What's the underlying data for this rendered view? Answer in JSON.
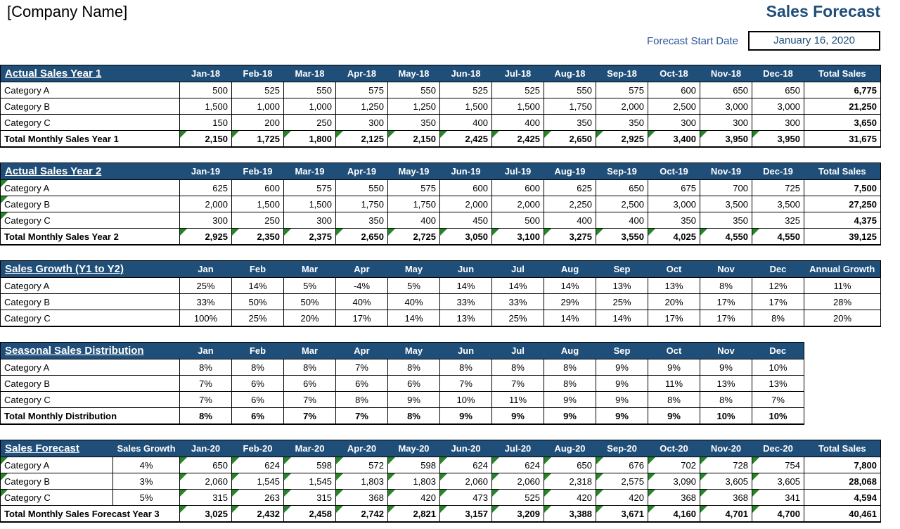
{
  "header": {
    "company_name": "[Company Name]",
    "title": "Sales Forecast",
    "forecast_start_label": "Forecast Start Date",
    "forecast_start_date": "January 16, 2020"
  },
  "colors": {
    "header_navy": "#1F4E79",
    "total_blue": "#DCE6F1",
    "cell_gray": "#D9D9D9",
    "marker_green": "#278427"
  },
  "tables": [
    {
      "title": "Actual Sales Year 1",
      "months": [
        "Jan-18",
        "Feb-18",
        "Mar-18",
        "Apr-18",
        "May-18",
        "Jun-18",
        "Jul-18",
        "Aug-18",
        "Sep-18",
        "Oct-18",
        "Nov-18",
        "Dec-18"
      ],
      "total_header": "Total Sales",
      "rows": [
        {
          "label": "Category A",
          "cells": [
            "500",
            "525",
            "550",
            "575",
            "550",
            "525",
            "525",
            "550",
            "575",
            "600",
            "650",
            "650"
          ],
          "total": "6,775"
        },
        {
          "label": "Category B",
          "cells": [
            "1,500",
            "1,000",
            "1,000",
            "1,250",
            "1,250",
            "1,500",
            "1,500",
            "1,750",
            "2,000",
            "2,500",
            "3,000",
            "3,000"
          ],
          "total": "21,250"
        },
        {
          "label": "Category C",
          "cells": [
            "150",
            "200",
            "250",
            "300",
            "350",
            "400",
            "400",
            "350",
            "350",
            "300",
            "300",
            "300"
          ],
          "total": "3,650"
        }
      ],
      "total_row": {
        "label": "Total Monthly Sales Year 1",
        "cells": [
          "2,150",
          "1,725",
          "1,800",
          "2,125",
          "2,150",
          "2,425",
          "2,425",
          "2,650",
          "2,925",
          "3,400",
          "3,950",
          "3,950"
        ],
        "total": "31,675"
      }
    },
    {
      "title": "Actual Sales Year 2",
      "months": [
        "Jan-19",
        "Feb-19",
        "Mar-19",
        "Apr-19",
        "May-19",
        "Jun-19",
        "Jul-19",
        "Aug-19",
        "Sep-19",
        "Oct-19",
        "Nov-19",
        "Dec-19"
      ],
      "total_header": "Total Sales",
      "rows": [
        {
          "label": "Category A",
          "cells": [
            "625",
            "600",
            "575",
            "550",
            "575",
            "600",
            "600",
            "625",
            "650",
            "675",
            "700",
            "725"
          ],
          "total": "7,500"
        },
        {
          "label": "Category B",
          "cells": [
            "2,000",
            "1,500",
            "1,500",
            "1,750",
            "1,750",
            "2,000",
            "2,000",
            "2,250",
            "2,500",
            "3,000",
            "3,500",
            "3,500"
          ],
          "total": "27,250"
        },
        {
          "label": "Category C",
          "cells": [
            "300",
            "250",
            "300",
            "350",
            "400",
            "450",
            "500",
            "400",
            "400",
            "350",
            "350",
            "325"
          ],
          "total": "4,375"
        }
      ],
      "total_row": {
        "label": "Total Monthly Sales Year 2",
        "cells": [
          "2,925",
          "2,350",
          "2,375",
          "2,650",
          "2,725",
          "3,050",
          "3,100",
          "3,275",
          "3,550",
          "4,025",
          "4,550",
          "4,550"
        ],
        "total": "39,125"
      }
    },
    {
      "title": "Sales Growth (Y1 to Y2)",
      "months": [
        "Jan",
        "Feb",
        "Mar",
        "Apr",
        "May",
        "Jun",
        "Jul",
        "Aug",
        "Sep",
        "Oct",
        "Nov",
        "Dec"
      ],
      "total_header": "Annual Growth",
      "rows": [
        {
          "label": "Category A",
          "cells": [
            "25%",
            "14%",
            "5%",
            "-4%",
            "5%",
            "14%",
            "14%",
            "14%",
            "13%",
            "13%",
            "8%",
            "12%"
          ],
          "total": "11%"
        },
        {
          "label": "Category B",
          "cells": [
            "33%",
            "50%",
            "50%",
            "40%",
            "40%",
            "33%",
            "33%",
            "29%",
            "25%",
            "20%",
            "17%",
            "17%"
          ],
          "total": "28%"
        },
        {
          "label": "Category C",
          "cells": [
            "100%",
            "25%",
            "20%",
            "17%",
            "14%",
            "13%",
            "25%",
            "14%",
            "14%",
            "17%",
            "17%",
            "8%"
          ],
          "total": "20%"
        }
      ],
      "total_row": null
    },
    {
      "title": "Seasonal Sales Distribution",
      "months": [
        "Jan",
        "Feb",
        "Mar",
        "Apr",
        "May",
        "Jun",
        "Jul",
        "Aug",
        "Sep",
        "Oct",
        "Nov",
        "Dec"
      ],
      "total_header": null,
      "rows": [
        {
          "label": "Category A",
          "cells": [
            "8%",
            "8%",
            "8%",
            "7%",
            "8%",
            "8%",
            "8%",
            "8%",
            "9%",
            "9%",
            "9%",
            "10%"
          ]
        },
        {
          "label": "Category B",
          "cells": [
            "7%",
            "6%",
            "6%",
            "6%",
            "6%",
            "7%",
            "7%",
            "8%",
            "9%",
            "11%",
            "13%",
            "13%"
          ]
        },
        {
          "label": "Category C",
          "cells": [
            "7%",
            "6%",
            "7%",
            "8%",
            "9%",
            "10%",
            "11%",
            "9%",
            "9%",
            "8%",
            "8%",
            "7%"
          ]
        }
      ],
      "total_row": {
        "label": "Total Monthly Distribution",
        "cells": [
          "8%",
          "6%",
          "7%",
          "7%",
          "8%",
          "9%",
          "9%",
          "9%",
          "9%",
          "9%",
          "10%",
          "10%"
        ]
      }
    },
    {
      "title": "Sales Forecast",
      "growth_header": "Sales Growth",
      "months": [
        "Jan-20",
        "Feb-20",
        "Mar-20",
        "Apr-20",
        "May-20",
        "Jun-20",
        "Jul-20",
        "Aug-20",
        "Sep-20",
        "Oct-20",
        "Nov-20",
        "Dec-20"
      ],
      "total_header": "Total Sales",
      "rows": [
        {
          "label": "Category A",
          "growth": "4%",
          "cells": [
            "650",
            "624",
            "598",
            "572",
            "598",
            "624",
            "624",
            "650",
            "676",
            "702",
            "728",
            "754"
          ],
          "total": "7,800"
        },
        {
          "label": "Category B",
          "growth": "3%",
          "cells": [
            "2,060",
            "1,545",
            "1,545",
            "1,803",
            "1,803",
            "2,060",
            "2,060",
            "2,318",
            "2,575",
            "3,090",
            "3,605",
            "3,605"
          ],
          "total": "28,068"
        },
        {
          "label": "Category C",
          "growth": "5%",
          "cells": [
            "315",
            "263",
            "315",
            "368",
            "420",
            "473",
            "525",
            "420",
            "420",
            "368",
            "368",
            "341"
          ],
          "total": "4,594"
        }
      ],
      "total_row": {
        "label": "Total Monthly Sales Forecast Year 3",
        "cells": [
          "3,025",
          "2,432",
          "2,458",
          "2,742",
          "2,821",
          "3,157",
          "3,209",
          "3,388",
          "3,671",
          "4,160",
          "4,701",
          "4,700"
        ],
        "total": "40,461"
      }
    }
  ]
}
